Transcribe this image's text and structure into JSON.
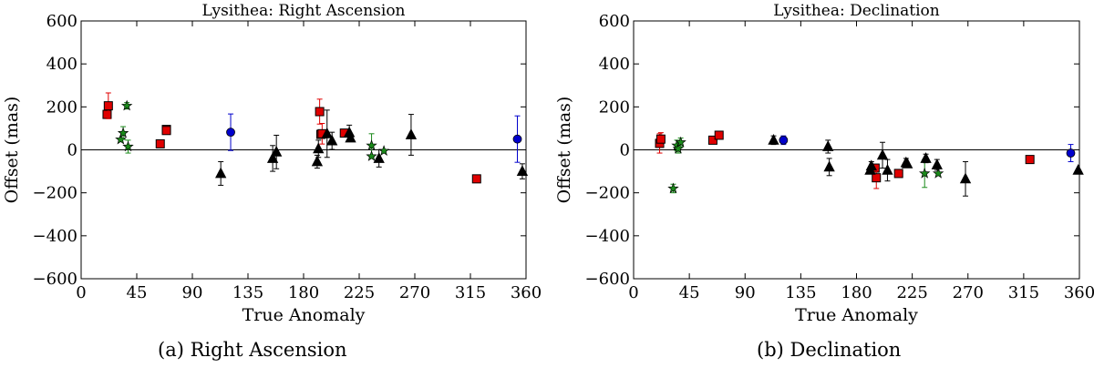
{
  "chart_data": [
    {
      "type": "scatter",
      "title": "Lysithea: Right Ascension",
      "xlabel": "True Anomaly",
      "ylabel": "Offset (mas)",
      "xlim": [
        0,
        360
      ],
      "ylim": [
        -600,
        600
      ],
      "xticks": [
        0,
        45,
        90,
        135,
        180,
        225,
        270,
        315,
        360
      ],
      "yticks": [
        -600,
        -400,
        -200,
        0,
        200,
        400,
        600
      ],
      "ytick_labels": [
        "−600",
        "−400",
        "−200",
        "0",
        "200",
        "400",
        "600"
      ],
      "grid": false,
      "zero_line": true,
      "caption": "(a)  Right Ascension",
      "series": [
        {
          "marker": "square",
          "color": "#e00000",
          "errcolor": "#e00000",
          "points": [
            [
              21,
              165,
              0
            ],
            [
              22,
              205,
              60
            ],
            [
              64,
              28,
              0
            ],
            [
              69,
              95,
              15
            ],
            [
              69,
              90,
              0
            ],
            [
              193,
              178,
              58
            ],
            [
              194,
              72,
              0
            ],
            [
              195,
              75,
              48
            ],
            [
              213,
              78,
              0
            ],
            [
              320,
              -135,
              0
            ]
          ]
        },
        {
          "marker": "star",
          "color": "#1a8a1a",
          "errcolor": "#1a8a1a",
          "points": [
            [
              32,
              48,
              0
            ],
            [
              34,
              78,
              30
            ],
            [
              37,
              205,
              15
            ],
            [
              38,
              15,
              30
            ],
            [
              235,
              20,
              55
            ],
            [
              235,
              -30,
              0
            ],
            [
              245,
              -5,
              0
            ]
          ]
        },
        {
          "marker": "triangle",
          "color": "#000000",
          "errcolor": "#000000",
          "points": [
            [
              113,
              -110,
              55
            ],
            [
              155,
              -40,
              60
            ],
            [
              158,
              -10,
              78
            ],
            [
              191,
              -55,
              30
            ],
            [
              192,
              5,
              40
            ],
            [
              199,
              75,
              110
            ],
            [
              203,
              42,
              40
            ],
            [
              217,
              80,
              35
            ],
            [
              218,
              55,
              0
            ],
            [
              241,
              -40,
              40
            ],
            [
              267,
              70,
              95
            ],
            [
              357,
              -100,
              35
            ]
          ]
        },
        {
          "marker": "circle",
          "color": "#0000cc",
          "errcolor": "#0000cc",
          "points": [
            [
              121,
              82,
              85
            ],
            [
              353,
              50,
              108
            ]
          ]
        }
      ]
    },
    {
      "type": "scatter",
      "title": "Lysithea: Declination",
      "xlabel": "True Anomaly",
      "ylabel": "Offset (mas)",
      "xlim": [
        0,
        360
      ],
      "ylim": [
        -600,
        600
      ],
      "xticks": [
        0,
        45,
        90,
        135,
        180,
        225,
        270,
        315,
        360
      ],
      "yticks": [
        -600,
        -400,
        -200,
        0,
        200,
        400,
        600
      ],
      "ytick_labels": [
        "−600",
        "−400",
        "−200",
        "0",
        "200",
        "400",
        "600"
      ],
      "grid": false,
      "zero_line": true,
      "caption": "(b)  Declination",
      "series": [
        {
          "marker": "square",
          "color": "#e00000",
          "errcolor": "#e00000",
          "points": [
            [
              21,
              30,
              45
            ],
            [
              22,
              50,
              30
            ],
            [
              64,
              45,
              0
            ],
            [
              69,
              68,
              0
            ],
            [
              195,
              -85,
              0
            ],
            [
              196,
              -130,
              50
            ],
            [
              214,
              -110,
              0
            ],
            [
              320,
              -45,
              0
            ]
          ]
        },
        {
          "marker": "star",
          "color": "#1a8a1a",
          "errcolor": "#1a8a1a",
          "points": [
            [
              32,
              -180,
              20
            ],
            [
              35,
              20,
              25
            ],
            [
              36,
              5,
              20
            ],
            [
              38,
              35,
              20
            ],
            [
              235,
              -110,
              65
            ],
            [
              246,
              -110,
              0
            ]
          ]
        },
        {
          "marker": "triangle",
          "color": "#000000",
          "errcolor": "#000000",
          "points": [
            [
              113,
              45,
              20
            ],
            [
              157,
              15,
              30
            ],
            [
              158,
              -80,
              40
            ],
            [
              191,
              -95,
              0
            ],
            [
              192,
              -75,
              20
            ],
            [
              201,
              -25,
              60
            ],
            [
              205,
              -95,
              50
            ],
            [
              220,
              -60,
              20
            ],
            [
              221,
              -65,
              0
            ],
            [
              236,
              -40,
              20
            ],
            [
              245,
              -70,
              25
            ],
            [
              268,
              -135,
              80
            ],
            [
              359,
              -95,
              0
            ]
          ]
        },
        {
          "marker": "circle",
          "color": "#0000cc",
          "errcolor": "#0000cc",
          "points": [
            [
              121,
              45,
              20
            ],
            [
              353,
              -15,
              40
            ]
          ]
        }
      ]
    }
  ]
}
